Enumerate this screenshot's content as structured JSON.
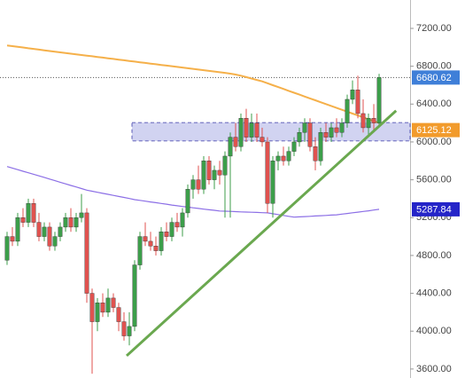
{
  "chart_data": {
    "type": "candlestick",
    "xlim": [
      -1.33,
      75.83
    ],
    "ylim": [
      3505,
      7500
    ],
    "yticks": [
      {
        "value": 3600,
        "label": "3600.00"
      },
      {
        "value": 4000,
        "label": "4000.00"
      },
      {
        "value": 4400,
        "label": "4400.00"
      },
      {
        "value": 4800,
        "label": "4800.00"
      },
      {
        "value": 5200,
        "label": "5200.00"
      },
      {
        "value": 5600,
        "label": "5600.00"
      },
      {
        "value": 6000,
        "label": "6000.00"
      },
      {
        "value": 6400,
        "label": "6400.00"
      },
      {
        "value": 6800,
        "label": "6800.00"
      },
      {
        "value": 7200,
        "label": "7200.00"
      }
    ],
    "up_color": "#3c9e4a",
    "down_color": "#e0524f",
    "open": [
      4750,
      5000,
      4950,
      5200,
      5150,
      5350,
      5150,
      5000,
      5100,
      4900,
      5000,
      5100,
      5200,
      5100,
      5200,
      5250,
      4400,
      4100,
      4300,
      4200,
      4350,
      4250,
      4100,
      3950,
      4050,
      4700,
      5000,
      4950,
      4900,
      4850,
      5050,
      5000,
      5150,
      5100,
      5250,
      5500,
      5600,
      5500,
      5800,
      5600,
      5700,
      5650,
      5850,
      6050,
      5950,
      6250,
      6050,
      6200,
      6050,
      6000,
      5350,
      5800,
      5850,
      5800,
      5900,
      6000,
      6100,
      6200,
      5950,
      5800,
      6100,
      6050,
      6150,
      6100,
      6200,
      6450,
      6550,
      6300,
      6150,
      6250,
      6200
    ],
    "high": [
      5050,
      5100,
      5250,
      5300,
      5400,
      5400,
      5250,
      5150,
      5150,
      5050,
      5150,
      5250,
      5300,
      5250,
      5450,
      5300,
      4450,
      4350,
      4400,
      4450,
      4400,
      4300,
      4200,
      4200,
      4750,
      5050,
      5150,
      5050,
      5000,
      5100,
      5150,
      5200,
      5250,
      5300,
      5550,
      5650,
      5750,
      5850,
      5850,
      5750,
      5800,
      5900,
      6100,
      6200,
      6300,
      6350,
      6300,
      6300,
      6150,
      6050,
      5850,
      5900,
      5950,
      5950,
      6050,
      6150,
      6250,
      6250,
      6050,
      6150,
      6200,
      6200,
      6250,
      6250,
      6500,
      6650,
      6700,
      6450,
      6300,
      6400,
      6720
    ],
    "low": [
      4700,
      4900,
      4900,
      5100,
      5100,
      5100,
      4950,
      4950,
      4850,
      4850,
      4950,
      5050,
      5050,
      5050,
      5150,
      4300,
      3550,
      4000,
      4150,
      4150,
      4200,
      4000,
      3900,
      3850,
      4000,
      4650,
      4900,
      4850,
      4800,
      4800,
      4950,
      4950,
      5050,
      5000,
      5200,
      5400,
      5450,
      5450,
      5550,
      5500,
      5550,
      5200,
      5200,
      5900,
      5900,
      6000,
      6000,
      6000,
      5950,
      5250,
      5200,
      5700,
      5750,
      5750,
      5850,
      5950,
      6000,
      5900,
      5700,
      5750,
      6000,
      6000,
      6050,
      6050,
      6150,
      6400,
      6250,
      6100,
      6050,
      6100,
      6150
    ],
    "close": [
      5000,
      4950,
      5200,
      5150,
      5350,
      5150,
      5000,
      5100,
      4900,
      5000,
      5100,
      5200,
      5100,
      5200,
      5250,
      4400,
      4100,
      4300,
      4200,
      4350,
      4250,
      4100,
      3950,
      4050,
      4700,
      5000,
      4950,
      4900,
      4850,
      5050,
      5000,
      5150,
      5100,
      5250,
      5500,
      5600,
      5500,
      5800,
      5600,
      5700,
      5650,
      5850,
      6050,
      5950,
      6250,
      6050,
      6200,
      6050,
      6000,
      5350,
      5800,
      5850,
      5800,
      5900,
      6000,
      6100,
      6200,
      5950,
      5800,
      6100,
      6050,
      6150,
      6100,
      6200,
      6450,
      6550,
      6300,
      6150,
      6250,
      6200,
      6680.62
    ],
    "moving_averages": [
      {
        "color": "#f5b04a",
        "values": [
          7020,
          7012,
          7005,
          6998,
          6990,
          6983,
          6976,
          6968,
          6961,
          6954,
          6947,
          6940,
          6933,
          6926,
          6919,
          6912,
          6905,
          6898,
          6891,
          6884,
          6877,
          6870,
          6863,
          6856,
          6849,
          6842,
          6835,
          6828,
          6821,
          6814,
          6807,
          6800,
          6793,
          6786,
          6779,
          6772,
          6765,
          6758,
          6751,
          6744,
          6737,
          6730,
          6722,
          6712,
          6700,
          6685,
          6670,
          6655,
          6640,
          6620,
          6600,
          6580,
          6560,
          6540,
          6520,
          6500,
          6480,
          6460,
          6440,
          6420,
          6400,
          6380,
          6360,
          6340,
          6320,
          6300,
          6280,
          6260,
          6240,
          6220,
          6200
        ]
      },
      {
        "color": "#8c6fe6",
        "values": [
          5740,
          5724,
          5707,
          5690,
          5674,
          5658,
          5641,
          5625,
          5608,
          5591,
          5574,
          5557,
          5540,
          5524,
          5507,
          5490,
          5479,
          5468,
          5457,
          5446,
          5435,
          5424,
          5413,
          5402,
          5390,
          5382,
          5374,
          5366,
          5358,
          5350,
          5342,
          5333,
          5325,
          5318,
          5311,
          5304,
          5297,
          5290,
          5283,
          5277,
          5270,
          5268,
          5266,
          5263,
          5261,
          5259,
          5257,
          5255,
          5252,
          5250,
          5241,
          5232,
          5223,
          5214,
          5205,
          5208,
          5211,
          5214,
          5217,
          5220,
          5223,
          5227,
          5230,
          5237,
          5244,
          5251,
          5258,
          5265,
          5272,
          5280,
          5287.84
        ]
      }
    ],
    "zone": {
      "low": 6010,
      "high": 6205,
      "color": "#c5c8ee"
    },
    "trendline": {
      "from": [
        22.5,
        3740
      ],
      "to": [
        73.2,
        6330
      ],
      "color": "#6aa84f"
    },
    "price_tags": [
      {
        "value": 6680.62,
        "color": "#3f7fd8"
      },
      {
        "value": 6125.12,
        "color": "#f29b2c"
      },
      {
        "value": 5287.84,
        "color": "#2424c8"
      }
    ]
  }
}
